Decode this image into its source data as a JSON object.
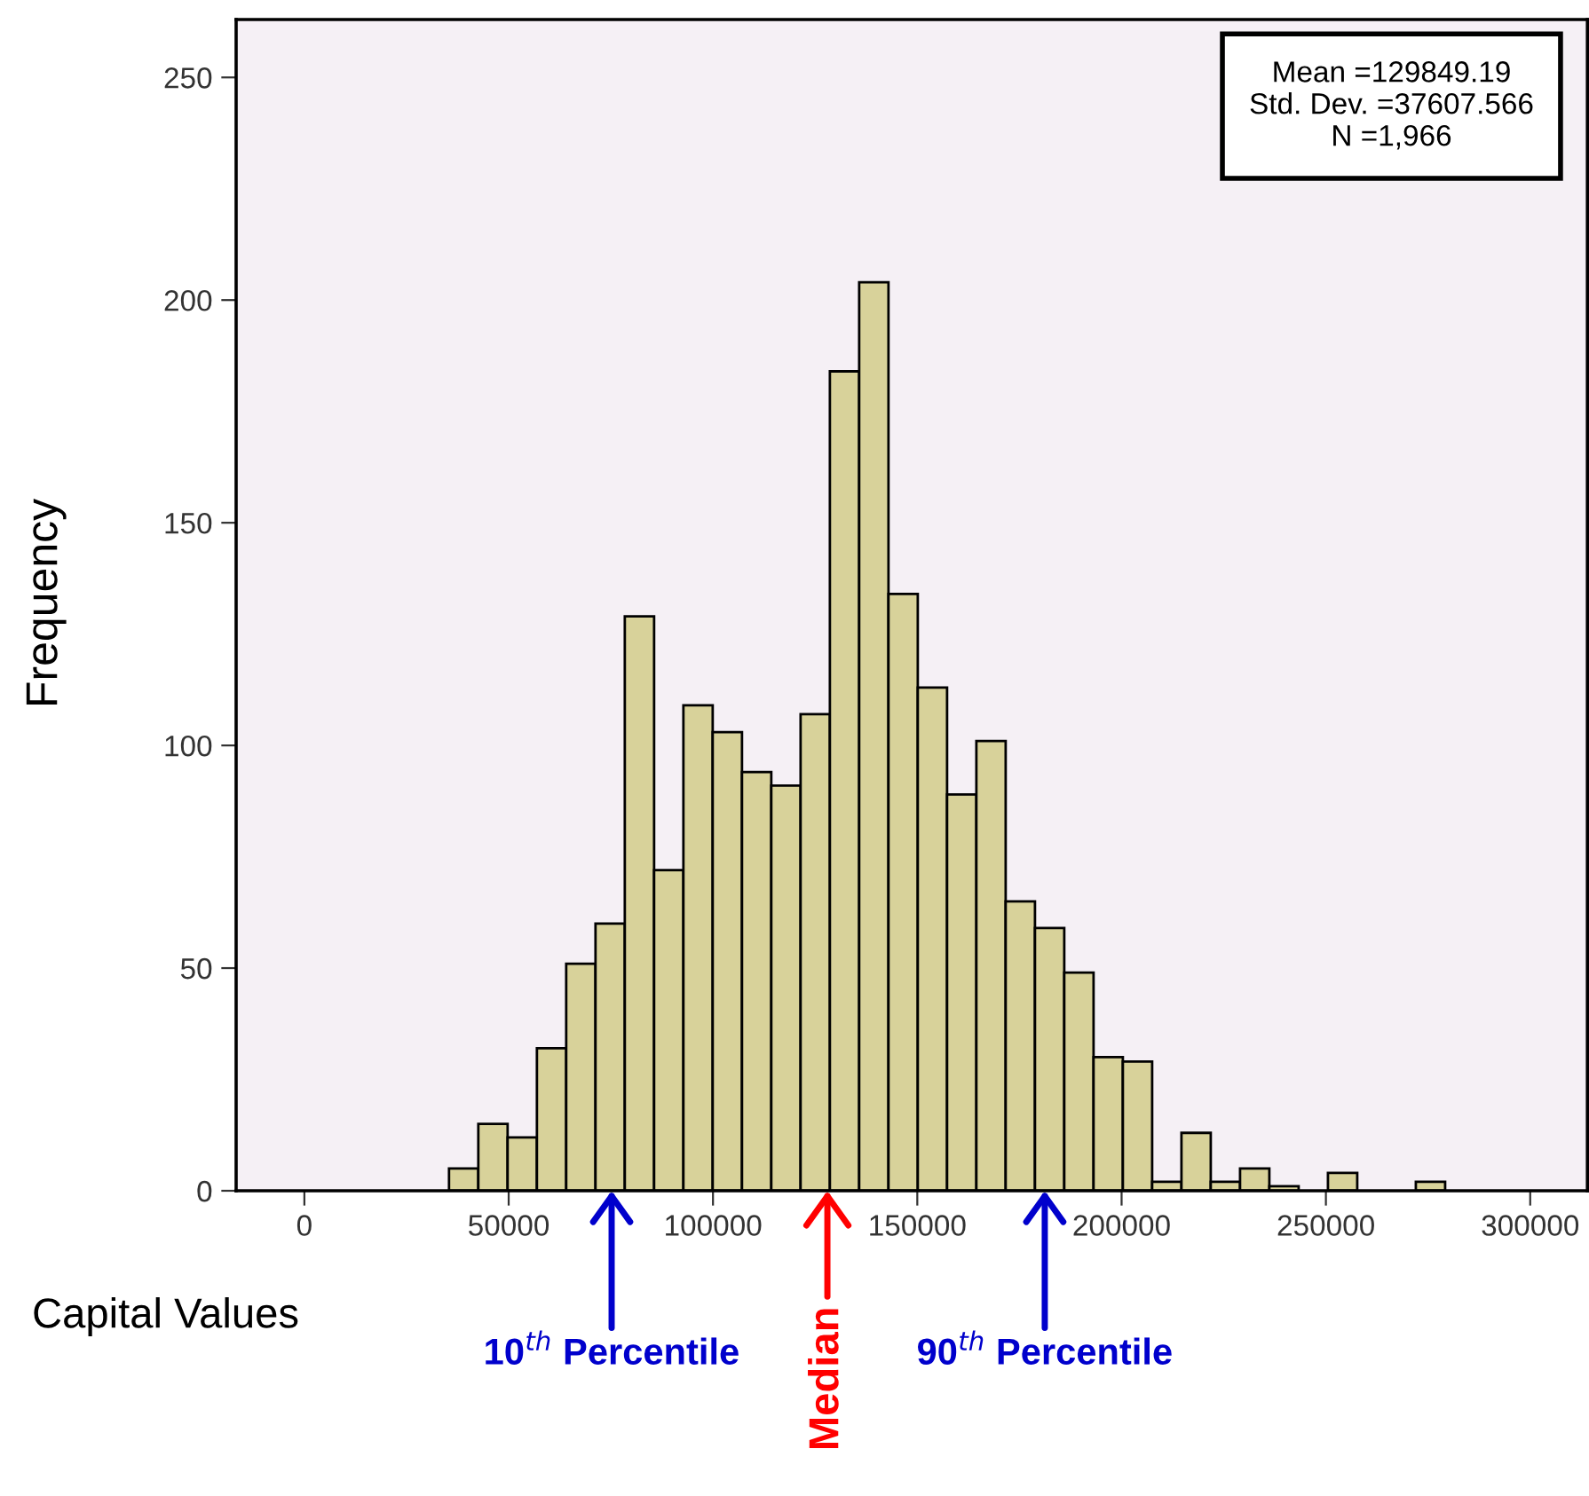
{
  "chart_data": {
    "type": "histogram",
    "xlabel": "Capital Values",
    "ylabel": "Frequency",
    "color": "#d8d29a",
    "bins": [
      35400,
      42570,
      49740,
      56910,
      64080,
      71250,
      78420,
      85590,
      92760,
      99930,
      107100,
      114270,
      121440,
      128610,
      135780,
      142950,
      150120,
      157290,
      164460,
      171630,
      178800,
      185970,
      193140,
      200310,
      207480,
      214650,
      221820,
      228990,
      236160,
      243330,
      250500,
      257670,
      264840,
      272010,
      279180
    ],
    "values": [
      5,
      15,
      12,
      32,
      51,
      60,
      129,
      72,
      109,
      103,
      94,
      91,
      107,
      184,
      204,
      134,
      113,
      89,
      101,
      65,
      59,
      49,
      30,
      29,
      2,
      13,
      2,
      5,
      1,
      0,
      4,
      0,
      0,
      2
    ],
    "xlim": [
      -16700,
      314000
    ],
    "ylim": [
      0,
      263
    ],
    "xticks": [
      0,
      50000,
      100000,
      150000,
      200000,
      250000,
      300000
    ],
    "yticks": [
      0,
      50,
      100,
      150,
      200,
      250
    ],
    "grid": false,
    "annotations": [
      "Mean =129849.19\nStd. Dev. =37607.566\nN =1,966",
      {
        "text": "10$^{th}$ Percentile",
        "x": 75200,
        "y": 0
      },
      {
        "text": "Median",
        "x": 128000,
        "y": 0
      },
      {
        "text": "90$^{th}$ Percentile",
        "x": 181200,
        "y": 0
      }
    ]
  }
}
